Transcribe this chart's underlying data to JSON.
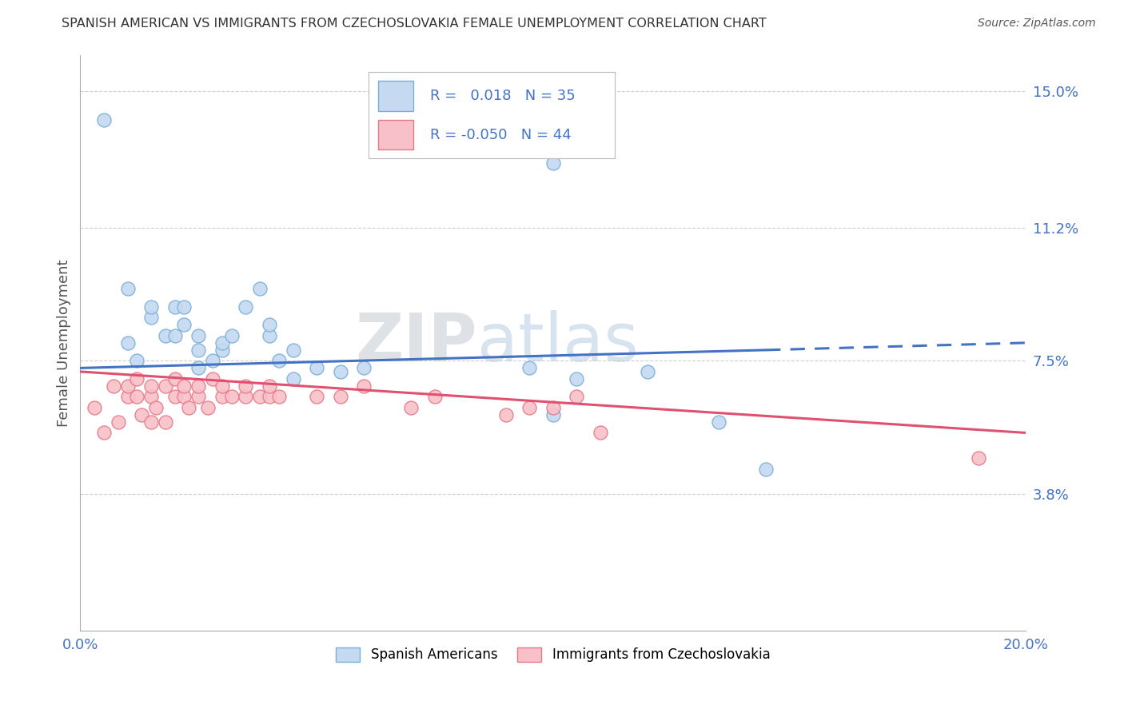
{
  "title": "SPANISH AMERICAN VS IMMIGRANTS FROM CZECHOSLOVAKIA FEMALE UNEMPLOYMENT CORRELATION CHART",
  "source": "Source: ZipAtlas.com",
  "xlabel": "",
  "ylabel": "Female Unemployment",
  "xlim": [
    0.0,
    0.2
  ],
  "ylim": [
    0.0,
    0.16
  ],
  "yticks": [
    0.038,
    0.075,
    0.112,
    0.15
  ],
  "ytick_labels": [
    "3.8%",
    "7.5%",
    "11.2%",
    "15.0%"
  ],
  "xticks": [
    0.0,
    0.025,
    0.05,
    0.075,
    0.1,
    0.125,
    0.15,
    0.175,
    0.2
  ],
  "xtick_labels": [
    "0.0%",
    "",
    "",
    "",
    "",
    "",
    "",
    "",
    "20.0%"
  ],
  "background_color": "#ffffff",
  "grid_color": "#d0d0d0",
  "series1_color": "#c5d9f1",
  "series1_edge": "#7ab0d8",
  "series2_color": "#f8c0c8",
  "series2_edge": "#e87888",
  "line1_color": "#4472c4",
  "line2_color": "#e05070",
  "r1": 0.018,
  "n1": 35,
  "r2": -0.05,
  "n2": 44,
  "legend_label1": "Spanish Americans",
  "legend_label2": "Immigrants from Czechoslovakia",
  "watermark_zip": "ZIP",
  "watermark_atlas": "atlas",
  "title_color": "#333333",
  "axis_color": "#4472c4",
  "scatter1_x": [
    0.005,
    0.01,
    0.01,
    0.012,
    0.015,
    0.015,
    0.018,
    0.02,
    0.02,
    0.022,
    0.022,
    0.025,
    0.025,
    0.025,
    0.028,
    0.03,
    0.03,
    0.032,
    0.035,
    0.038,
    0.04,
    0.04,
    0.042,
    0.045,
    0.045,
    0.05,
    0.055,
    0.06,
    0.095,
    0.1,
    0.105,
    0.12,
    0.135,
    0.145,
    0.1
  ],
  "scatter1_y": [
    0.142,
    0.095,
    0.08,
    0.075,
    0.087,
    0.09,
    0.082,
    0.082,
    0.09,
    0.085,
    0.09,
    0.073,
    0.078,
    0.082,
    0.075,
    0.078,
    0.08,
    0.082,
    0.09,
    0.095,
    0.082,
    0.085,
    0.075,
    0.07,
    0.078,
    0.073,
    0.072,
    0.073,
    0.073,
    0.06,
    0.07,
    0.072,
    0.058,
    0.045,
    0.13
  ],
  "scatter2_x": [
    0.003,
    0.005,
    0.007,
    0.008,
    0.01,
    0.01,
    0.012,
    0.012,
    0.013,
    0.015,
    0.015,
    0.015,
    0.016,
    0.018,
    0.018,
    0.02,
    0.02,
    0.022,
    0.022,
    0.023,
    0.025,
    0.025,
    0.027,
    0.028,
    0.03,
    0.03,
    0.032,
    0.035,
    0.035,
    0.038,
    0.04,
    0.04,
    0.042,
    0.05,
    0.055,
    0.06,
    0.07,
    0.075,
    0.09,
    0.095,
    0.1,
    0.105,
    0.11,
    0.19
  ],
  "scatter2_y": [
    0.062,
    0.055,
    0.068,
    0.058,
    0.065,
    0.068,
    0.065,
    0.07,
    0.06,
    0.058,
    0.065,
    0.068,
    0.062,
    0.068,
    0.058,
    0.065,
    0.07,
    0.065,
    0.068,
    0.062,
    0.065,
    0.068,
    0.062,
    0.07,
    0.065,
    0.068,
    0.065,
    0.065,
    0.068,
    0.065,
    0.065,
    0.068,
    0.065,
    0.065,
    0.065,
    0.068,
    0.062,
    0.065,
    0.06,
    0.062,
    0.062,
    0.065,
    0.055,
    0.048
  ],
  "line1_x_start": 0.0,
  "line1_x_end": 0.145,
  "line1_y_start": 0.073,
  "line1_y_end": 0.078,
  "line1_dash_x_start": 0.145,
  "line1_dash_x_end": 0.2,
  "line1_dash_y_start": 0.078,
  "line1_dash_y_end": 0.08,
  "line2_x_start": 0.0,
  "line2_x_end": 0.2,
  "line2_y_start": 0.072,
  "line2_y_end": 0.055
}
